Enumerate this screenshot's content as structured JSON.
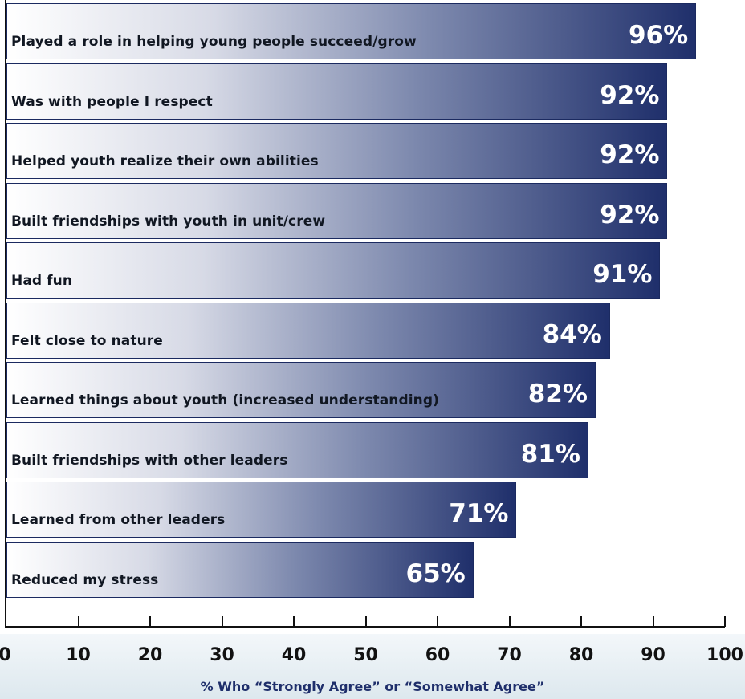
{
  "chart_data": {
    "type": "bar",
    "orientation": "horizontal",
    "categories": [
      "Played a role in helping young people succeed/grow",
      "Was with people I respect",
      "Helped youth realize their own abilities",
      "Built friendships with youth in unit/crew",
      "Had fun",
      "Felt close to nature",
      "Learned things about youth (increased understanding)",
      "Built friendships with other leaders",
      "Learned from other leaders",
      "Reduced my stress"
    ],
    "values": [
      96,
      92,
      92,
      92,
      91,
      84,
      82,
      81,
      71,
      65
    ],
    "value_labels": [
      "96%",
      "92%",
      "92%",
      "92%",
      "91%",
      "84%",
      "82%",
      "81%",
      "71%",
      "65%"
    ],
    "xlim": [
      0,
      100
    ],
    "x_ticks": [
      "0",
      "10",
      "20",
      "30",
      "40",
      "50",
      "60",
      "70",
      "80",
      "90",
      "100"
    ],
    "xlabel": "% Who “Strongly Agree” or “Somewhat Agree”",
    "ylabel": "",
    "title": "",
    "grid": false,
    "colors": {
      "bar_dark": "#1f2f6b",
      "bar_light": "#ffffff",
      "axis": "#111111"
    }
  }
}
